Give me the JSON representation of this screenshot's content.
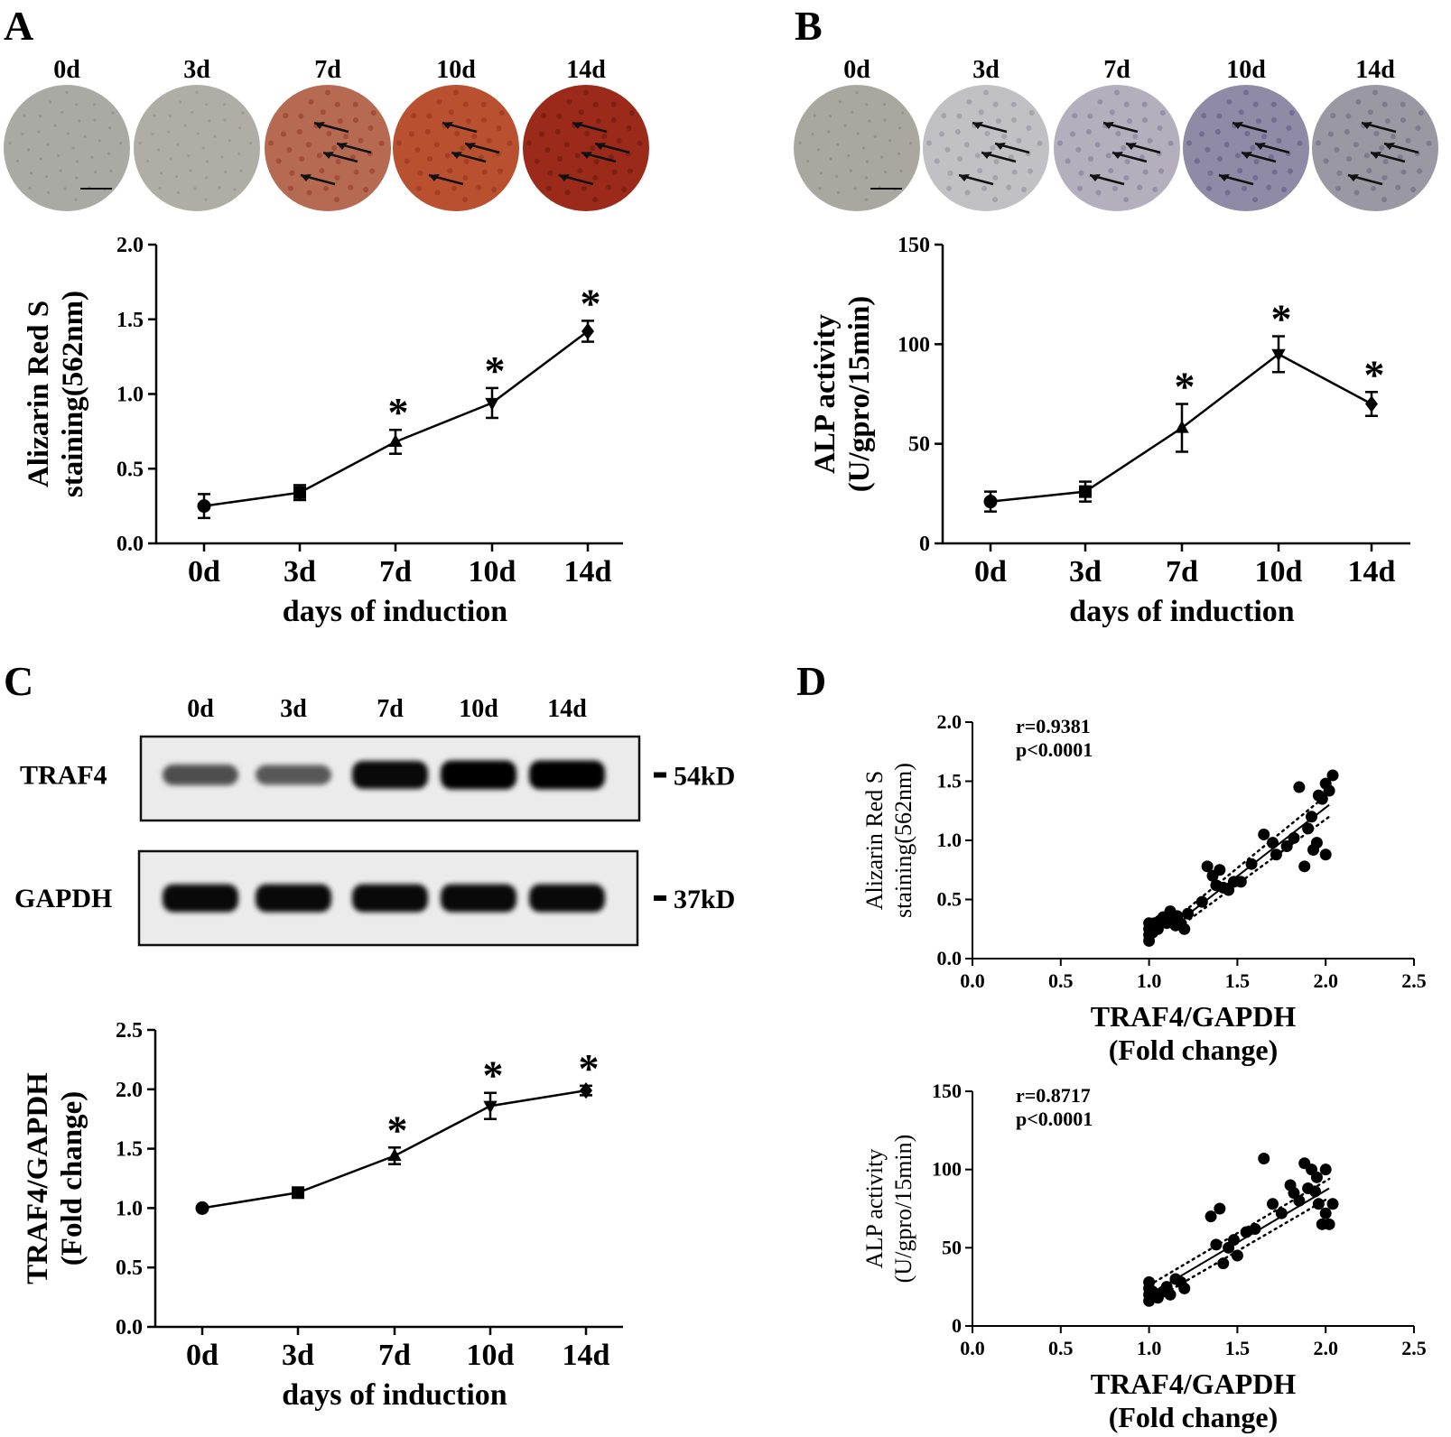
{
  "panels": {
    "A": {
      "letter": "A",
      "image_days": [
        "0d",
        "3d",
        "7d",
        "10d",
        "14d"
      ],
      "image_colors": [
        "#a9aaa4",
        "#aeaea7",
        "#b76a52",
        "#b95030",
        "#9c2a1a"
      ]
    },
    "B": {
      "letter": "B",
      "image_days": [
        "0d",
        "3d",
        "7d",
        "10d",
        "14d"
      ],
      "image_colors": [
        "#a8a8a0",
        "#c1c1c4",
        "#b3afbd",
        "#8f8aa6",
        "#9a98a3"
      ]
    },
    "C": {
      "letter": "C",
      "blot_lanes": [
        "0d",
        "3d",
        "7d",
        "10d",
        "14d"
      ],
      "blot_rows": [
        {
          "name": "TRAF4",
          "marker": "54kD",
          "band_intensity": [
            0.55,
            0.5,
            0.95,
            1.0,
            1.0
          ]
        },
        {
          "name": "GAPDH",
          "marker": "37kD",
          "band_intensity": [
            0.95,
            0.95,
            0.95,
            0.95,
            0.95
          ]
        }
      ]
    },
    "D": {
      "letter": "D"
    }
  },
  "chart_data": [
    {
      "id": "A",
      "type": "line",
      "categories": [
        "0d",
        "3d",
        "7d",
        "10d",
        "14d"
      ],
      "values": [
        0.25,
        0.34,
        0.68,
        0.94,
        1.42
      ],
      "errors": [
        0.08,
        0.05,
        0.08,
        0.1,
        0.07
      ],
      "markers": [
        "circle",
        "square",
        "triangle-up",
        "triangle-down",
        "diamond"
      ],
      "significant": [
        "",
        "",
        "*",
        "*",
        "*"
      ],
      "ylabel_line1": "Alizarin Red S",
      "ylabel_line2": "staining(562nm)",
      "xlabel": "days of induction",
      "ylim": [
        0,
        2.0
      ],
      "yticks": [
        "0.0",
        "0.5",
        "1.0",
        "1.5",
        "2.0"
      ]
    },
    {
      "id": "B",
      "type": "line",
      "categories": [
        "0d",
        "3d",
        "7d",
        "10d",
        "14d"
      ],
      "values": [
        21,
        26,
        58,
        95,
        70
      ],
      "errors": [
        5,
        5,
        12,
        9,
        6
      ],
      "markers": [
        "circle",
        "square",
        "triangle-up",
        "triangle-down",
        "diamond"
      ],
      "significant": [
        "",
        "",
        "*",
        "*",
        "*"
      ],
      "ylabel_line1": "ALP activity",
      "ylabel_line2": "(U/gpro/15min)",
      "xlabel": "days of induction",
      "ylim": [
        0,
        150
      ],
      "yticks": [
        "0",
        "50",
        "100",
        "150"
      ]
    },
    {
      "id": "C",
      "type": "line",
      "categories": [
        "0d",
        "3d",
        "7d",
        "10d",
        "14d"
      ],
      "values": [
        1.0,
        1.13,
        1.44,
        1.86,
        1.99
      ],
      "errors": [
        0.0,
        0.04,
        0.07,
        0.11,
        0.04
      ],
      "markers": [
        "circle",
        "square",
        "triangle-up",
        "triangle-down",
        "diamond"
      ],
      "significant": [
        "",
        "",
        "*",
        "*",
        "*"
      ],
      "ylabel_line1": "TRAF4/GAPDH",
      "ylabel_line2": "(Fold change)",
      "xlabel": "days of induction",
      "ylim": [
        0,
        2.5
      ],
      "yticks": [
        "0.0",
        "0.5",
        "1.0",
        "1.5",
        "2.0",
        "2.5"
      ]
    },
    {
      "id": "D1",
      "type": "scatter",
      "r_text": "r=0.9381",
      "p_text": "p<0.0001",
      "ylabel_line1": "Alizarin Red S",
      "ylabel_line2": "staining(562nm)",
      "xlabel_line1": "TRAF4/GAPDH",
      "xlabel_line2": "(Fold change)",
      "xlim": [
        0,
        2.5
      ],
      "ylim": [
        0,
        2.0
      ],
      "xticks": [
        "0.0",
        "0.5",
        "1.0",
        "1.5",
        "2.0",
        "2.5"
      ],
      "yticks": [
        "0.0",
        "0.5",
        "1.0",
        "1.5",
        "2.0"
      ],
      "fit": {
        "x0": 1.2,
        "y0": 0.35,
        "x1": 2.02,
        "y1": 1.3
      },
      "ci_upper": {
        "x0": 1.2,
        "y0": 0.4,
        "x1": 2.02,
        "y1": 1.4
      },
      "ci_lower": {
        "x0": 1.2,
        "y0": 0.3,
        "x1": 2.02,
        "y1": 1.2
      },
      "points": [
        [
          1.0,
          0.15
        ],
        [
          1.0,
          0.2
        ],
        [
          1.0,
          0.25
        ],
        [
          1.0,
          0.3
        ],
        [
          1.01,
          0.27
        ],
        [
          1.02,
          0.22
        ],
        [
          1.03,
          0.3
        ],
        [
          1.05,
          0.25
        ],
        [
          1.06,
          0.32
        ],
        [
          1.08,
          0.35
        ],
        [
          1.1,
          0.3
        ],
        [
          1.12,
          0.4
        ],
        [
          1.14,
          0.33
        ],
        [
          1.15,
          0.28
        ],
        [
          1.16,
          0.36
        ],
        [
          1.18,
          0.3
        ],
        [
          1.2,
          0.25
        ],
        [
          1.22,
          0.38
        ],
        [
          1.3,
          0.48
        ],
        [
          1.33,
          0.78
        ],
        [
          1.36,
          0.7
        ],
        [
          1.38,
          0.62
        ],
        [
          1.4,
          0.75
        ],
        [
          1.42,
          0.6
        ],
        [
          1.45,
          0.58
        ],
        [
          1.48,
          0.65
        ],
        [
          1.52,
          0.65
        ],
        [
          1.58,
          0.8
        ],
        [
          1.65,
          1.05
        ],
        [
          1.7,
          0.98
        ],
        [
          1.72,
          0.88
        ],
        [
          1.78,
          0.95
        ],
        [
          1.82,
          1.02
        ],
        [
          1.85,
          1.45
        ],
        [
          1.88,
          0.78
        ],
        [
          1.9,
          1.1
        ],
        [
          1.92,
          1.2
        ],
        [
          1.95,
          0.98
        ],
        [
          1.96,
          1.38
        ],
        [
          1.98,
          1.35
        ],
        [
          2.0,
          1.48
        ],
        [
          2.0,
          0.88
        ],
        [
          2.02,
          1.42
        ],
        [
          2.04,
          1.55
        ],
        [
          1.93,
          0.92
        ]
      ]
    },
    {
      "id": "D2",
      "type": "scatter",
      "r_text": "r=0.8717",
      "p_text": "p<0.0001",
      "ylabel_line1": "ALP activity",
      "ylabel_line2": "(U/gpro/15min)",
      "xlabel_line1": "TRAF4/GAPDH",
      "xlabel_line2": "(Fold change)",
      "xlim": [
        0,
        2.5
      ],
      "ylim": [
        0,
        150
      ],
      "xticks": [
        "0.0",
        "0.5",
        "1.0",
        "1.5",
        "2.0",
        "2.5"
      ],
      "yticks": [
        "0",
        "50",
        "100",
        "150"
      ],
      "fit": {
        "x0": 1.0,
        "y0": 20,
        "x1": 2.02,
        "y1": 88
      },
      "ci_upper": {
        "x0": 1.0,
        "y0": 26,
        "x1": 2.02,
        "y1": 94
      },
      "ci_lower": {
        "x0": 1.0,
        "y0": 15,
        "x1": 2.02,
        "y1": 82
      },
      "points": [
        [
          1.0,
          16
        ],
        [
          1.0,
          20
        ],
        [
          1.0,
          24
        ],
        [
          1.0,
          28
        ],
        [
          1.02,
          22
        ],
        [
          1.05,
          18
        ],
        [
          1.08,
          22
        ],
        [
          1.1,
          25
        ],
        [
          1.12,
          20
        ],
        [
          1.15,
          30
        ],
        [
          1.18,
          28
        ],
        [
          1.2,
          24
        ],
        [
          1.35,
          70
        ],
        [
          1.4,
          75
        ],
        [
          1.38,
          52
        ],
        [
          1.42,
          40
        ],
        [
          1.45,
          50
        ],
        [
          1.48,
          55
        ],
        [
          1.5,
          45
        ],
        [
          1.55,
          60
        ],
        [
          1.6,
          62
        ],
        [
          1.65,
          107
        ],
        [
          1.7,
          78
        ],
        [
          1.75,
          72
        ],
        [
          1.8,
          90
        ],
        [
          1.82,
          85
        ],
        [
          1.85,
          80
        ],
        [
          1.88,
          104
        ],
        [
          1.9,
          88
        ],
        [
          1.92,
          100
        ],
        [
          1.95,
          95
        ],
        [
          1.96,
          78
        ],
        [
          1.98,
          65
        ],
        [
          2.0,
          100
        ],
        [
          2.02,
          65
        ],
        [
          2.04,
          78
        ],
        [
          1.94,
          86
        ],
        [
          2.0,
          72
        ]
      ]
    }
  ]
}
